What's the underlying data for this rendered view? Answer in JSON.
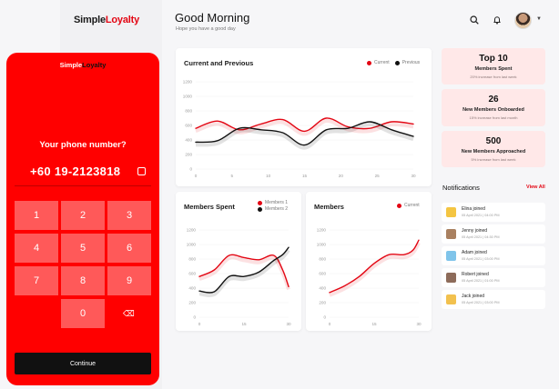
{
  "brand": {
    "part1": "Simple",
    "part2": "Loyalty"
  },
  "header": {
    "greeting": "Good Morning",
    "subtitle": "Hope you have a good day"
  },
  "colors": {
    "accent": "#e30613",
    "dark": "#111111",
    "phone_bg": "#ff0000",
    "stat_bg": "#ffe8e8"
  },
  "icons": [
    "search-icon",
    "bell-icon",
    "chevron-down-icon",
    "copy-icon",
    "backspace-icon"
  ],
  "chart_data": [
    {
      "type": "line",
      "title": "Current and Previous",
      "x_ticks": [
        "0",
        "5",
        "10",
        "15",
        "20",
        "25",
        "30"
      ],
      "y_ticks": [
        "0",
        "200",
        "400",
        "600",
        "800",
        "1000",
        "1200"
      ],
      "ylim": [
        0,
        1200
      ],
      "xlim": [
        0,
        30
      ],
      "series": [
        {
          "name": "Current",
          "color": "#e30613",
          "x": [
            0,
            3,
            6,
            9,
            12,
            15,
            18,
            21,
            24,
            27,
            30
          ],
          "values": [
            560,
            660,
            540,
            620,
            680,
            520,
            700,
            580,
            560,
            650,
            620
          ]
        },
        {
          "name": "Previous",
          "color": "#111111",
          "x": [
            0,
            3,
            6,
            9,
            12,
            15,
            18,
            21,
            24,
            27,
            30
          ],
          "values": [
            370,
            390,
            560,
            540,
            500,
            330,
            540,
            560,
            650,
            540,
            450
          ]
        }
      ]
    },
    {
      "type": "line",
      "title": "Members Spent",
      "x_ticks": [
        "0",
        "15",
        "30"
      ],
      "y_ticks": [
        "0",
        "200",
        "400",
        "600",
        "800",
        "1000",
        "1200"
      ],
      "ylim": [
        0,
        1200
      ],
      "xlim": [
        0,
        30
      ],
      "series": [
        {
          "name": "Members 1",
          "color": "#e30613",
          "x": [
            0,
            5,
            10,
            15,
            20,
            25,
            28,
            30
          ],
          "values": [
            560,
            650,
            850,
            820,
            790,
            850,
            650,
            420
          ]
        },
        {
          "name": "Members 2",
          "color": "#111111",
          "x": [
            0,
            5,
            10,
            15,
            20,
            25,
            28,
            30
          ],
          "values": [
            360,
            350,
            560,
            560,
            620,
            780,
            860,
            960
          ]
        }
      ]
    },
    {
      "type": "line",
      "title": "Members",
      "x_ticks": [
        "0",
        "15",
        "30"
      ],
      "y_ticks": [
        "0",
        "200",
        "400",
        "600",
        "800",
        "1000",
        "1200"
      ],
      "ylim": [
        0,
        1200
      ],
      "xlim": [
        0,
        30
      ],
      "series": [
        {
          "name": "Current",
          "color": "#e30613",
          "x": [
            0,
            5,
            10,
            15,
            20,
            25,
            28,
            30
          ],
          "values": [
            340,
            430,
            560,
            740,
            860,
            860,
            920,
            1060
          ]
        }
      ]
    }
  ],
  "stats": [
    {
      "value": "Top 10",
      "label": "Members Spent",
      "sub": "20% increase from last week"
    },
    {
      "value": "26",
      "label": "New Members Onboarded",
      "sub": "15% increase from last month"
    },
    {
      "value": "500",
      "label": "New Members Approached",
      "sub": "5% increase from last week"
    }
  ],
  "notifications": {
    "title": "Notifications",
    "view_all": "View All",
    "items": [
      {
        "text": "Elina joined",
        "date": "05 April 2021 | 04:00 PM",
        "color": "#f4c542"
      },
      {
        "text": "Jenny joined",
        "date": "05 April 2021 | 04:30 PM",
        "color": "#a98060"
      },
      {
        "text": "Adam joined",
        "date": "05 April 2021 | 03:00 PM",
        "color": "#7fc4ea"
      },
      {
        "text": "Robert joined",
        "date": "05 April 2021 | 01:00 PM",
        "color": "#8d6b5a"
      },
      {
        "text": "Jack joined",
        "date": "05 April 2021 | 03:00 PM",
        "color": "#f2c14e"
      }
    ]
  },
  "phone": {
    "brand1": "Simple",
    "brand2": "Loyalty",
    "question": "Your phone number?",
    "number": "+60 19-2123818",
    "keys": [
      "1",
      "2",
      "3",
      "4",
      "5",
      "6",
      "7",
      "8",
      "9",
      "0"
    ],
    "continue": "Continue"
  }
}
